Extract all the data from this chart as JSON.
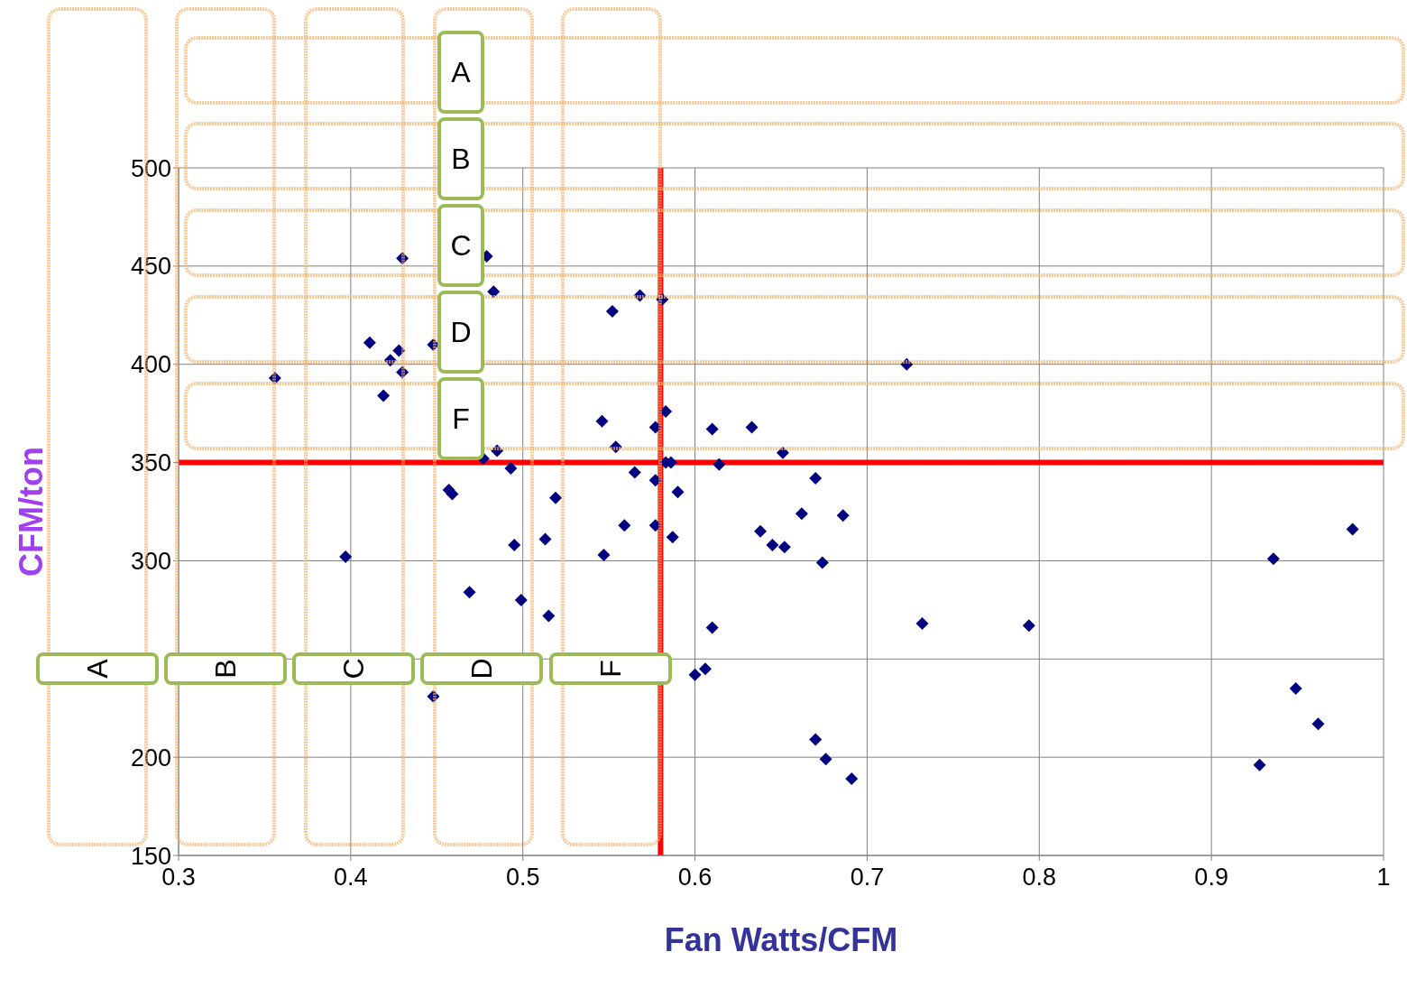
{
  "chart_data": {
    "type": "scatter",
    "xlabel": "Fan Watts/CFM",
    "ylabel": "CFM/ton",
    "x": [
      0.356,
      0.397,
      0.411,
      0.423,
      0.428,
      0.43,
      0.419,
      0.43,
      0.448,
      0.479,
      0.483,
      0.477,
      0.485,
      0.493,
      0.457,
      0.459,
      0.495,
      0.469,
      0.499,
      0.515,
      0.513,
      0.519,
      0.448,
      0.552,
      0.568,
      0.581,
      0.546,
      0.554,
      0.565,
      0.559,
      0.547,
      0.577,
      0.583,
      0.577,
      0.583,
      0.586,
      0.59,
      0.577,
      0.587,
      0.61,
      0.633,
      0.614,
      0.651,
      0.638,
      0.645,
      0.652,
      0.67,
      0.662,
      0.686,
      0.674,
      0.61,
      0.6,
      0.606,
      0.723,
      0.732,
      0.794,
      0.67,
      0.676,
      0.691,
      0.936,
      0.982,
      0.928,
      0.949,
      0.962
    ],
    "series": [
      {
        "color": "#000080",
        "values": [
          393,
          302,
          411,
          402,
          407,
          396,
          384,
          454,
          410,
          455,
          437,
          352,
          356,
          347,
          336,
          334,
          308,
          284,
          280,
          272,
          311,
          332,
          231,
          427,
          435,
          433,
          371,
          358,
          345,
          318,
          303,
          368,
          376,
          341,
          350,
          350,
          335,
          318,
          312,
          367,
          368,
          349,
          355,
          315,
          308,
          307,
          342,
          324,
          323,
          299,
          266,
          242,
          245,
          400,
          268,
          267,
          209,
          199,
          189,
          301,
          316,
          196,
          235,
          217
        ]
      }
    ],
    "xlim": [
      0.3,
      1
    ],
    "xticks": [
      0.3,
      0.4,
      0.5,
      0.6,
      0.7,
      0.8,
      0.9,
      1
    ],
    "ylim": [
      150,
      500
    ],
    "yticks": [
      150,
      200,
      {
        "value": 250,
        "label": null
      },
      300,
      350,
      400,
      450,
      500
    ],
    "grid": true,
    "marker": "diamond",
    "legend": false,
    "ref_lines": [
      {
        "axis": "x",
        "value": 0.58,
        "color": "#ff0000"
      },
      {
        "axis": "y",
        "value": 350,
        "color": "#ff0000"
      }
    ],
    "annotations": [
      "A",
      "B",
      "C",
      "D",
      "F",
      "A",
      "B",
      "C",
      "D",
      "F"
    ]
  }
}
